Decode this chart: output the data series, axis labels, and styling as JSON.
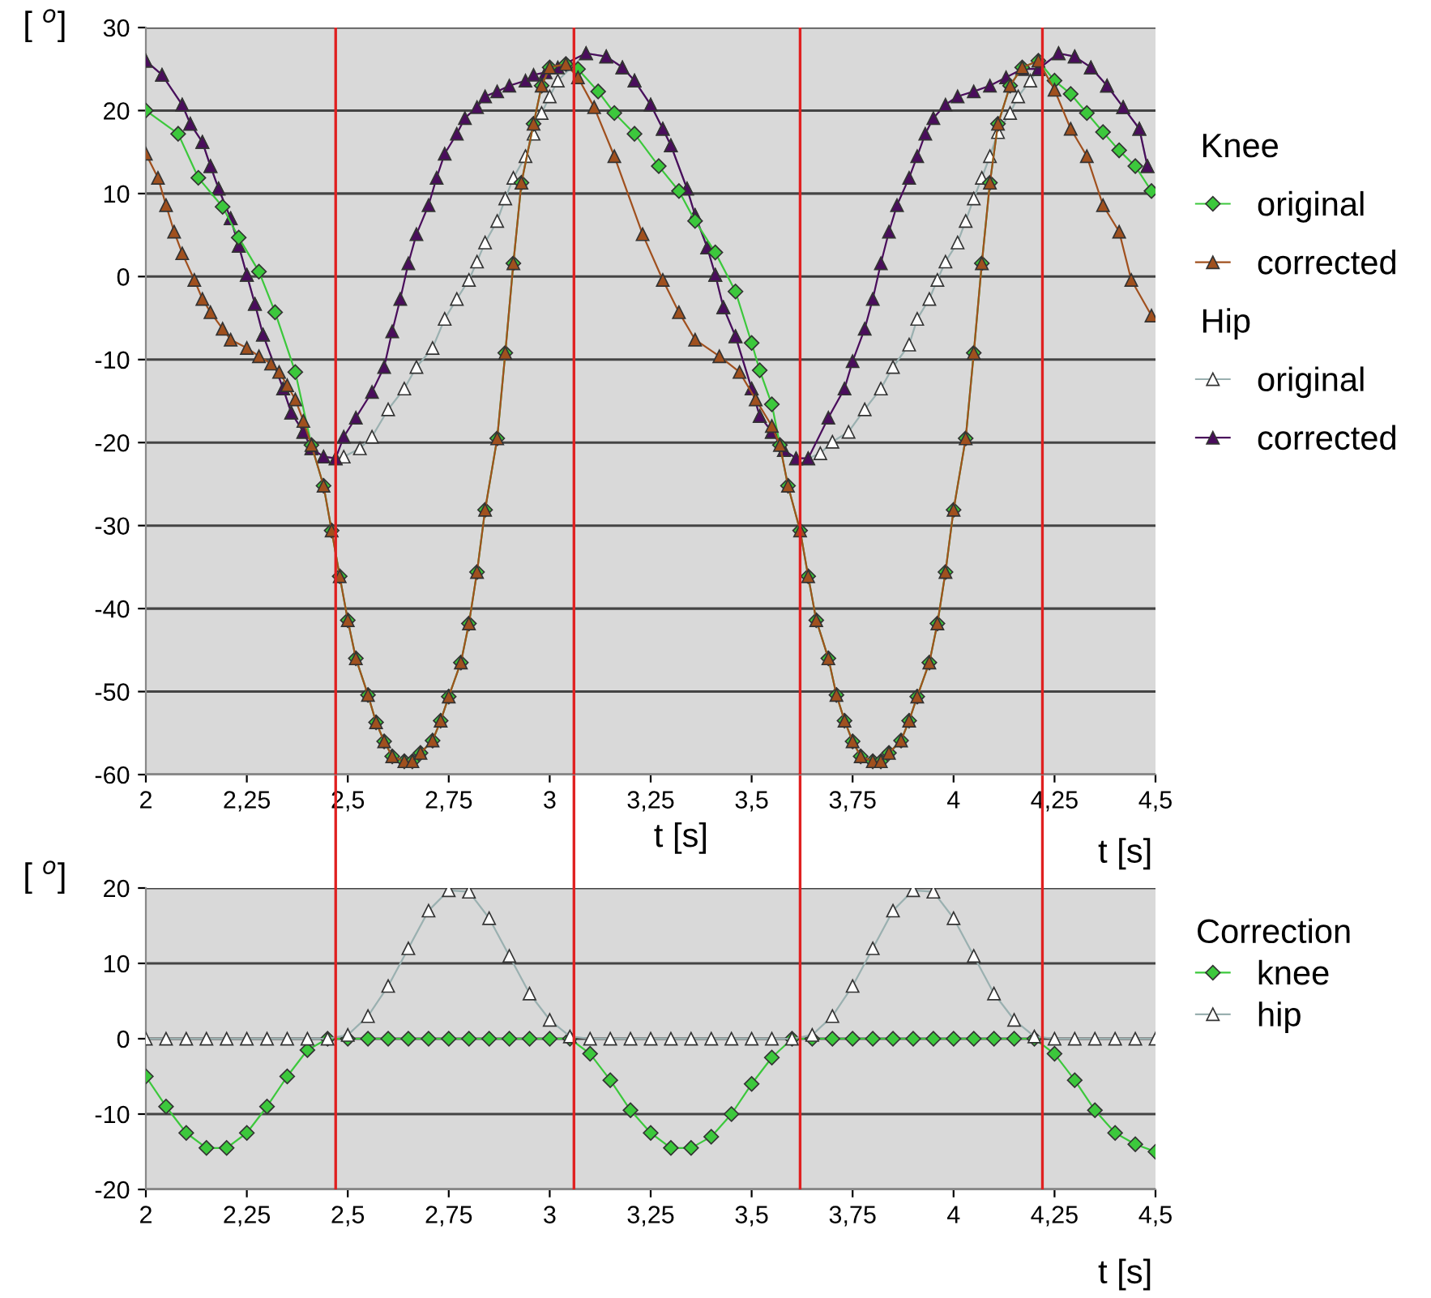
{
  "chart_data": [
    {
      "type": "line",
      "ylabel": "[ $^{o}$]",
      "xlabel": "t [s]",
      "annotations": [
        "Knee",
        "Hip",
        "t [s]"
      ],
      "xlim": [
        2,
        4.5
      ],
      "ylim": [
        -60,
        30
      ],
      "xticks": [
        2,
        {
          "value": 2.25,
          "label": "2,25"
        },
        {
          "value": 2.5,
          "label": "2,5"
        },
        {
          "value": 2.75,
          "label": "2,75"
        },
        3,
        {
          "value": 3.25,
          "label": "3,25"
        },
        {
          "value": 3.5,
          "label": "3,5"
        },
        {
          "value": 3.75,
          "label": "3,75"
        },
        4,
        {
          "value": 4.25,
          "label": "4,25"
        },
        {
          "value": 4.5,
          "label": "4,5"
        }
      ],
      "yticks": [
        -60,
        -50,
        -40,
        -30,
        -20,
        -10,
        0,
        10,
        20,
        30
      ],
      "grid": "y",
      "legend": "top right",
      "line_style": "solid",
      "ref_lines": [
        {
          "axis": "x",
          "value": 2.47,
          "color": "#e02020"
        },
        {
          "axis": "x",
          "value": 3.06,
          "color": "#e02020"
        },
        {
          "axis": "x",
          "value": 3.62,
          "color": "#e02020"
        },
        {
          "axis": "x",
          "value": 4.22,
          "color": "#e02020"
        }
      ],
      "series": [
        {
          "name": "original",
          "color": "#ffffff",
          "marker": "triangle",
          "x": [
            2.0,
            2.04,
            2.09,
            2.11,
            2.14,
            2.16,
            2.18,
            2.21,
            2.23,
            2.25,
            2.27,
            2.29,
            2.34,
            2.36,
            2.39,
            2.41,
            2.44,
            2.47,
            2.49,
            2.53,
            2.56,
            2.6,
            2.64,
            2.67,
            2.71,
            2.74,
            2.77,
            2.8,
            2.82,
            2.84,
            2.87,
            2.89,
            2.91,
            2.94,
            2.96,
            2.98,
            3.0,
            3.02,
            3.09,
            3.14,
            3.18,
            3.21,
            3.25,
            3.28,
            3.3,
            3.34,
            3.36,
            3.39,
            3.41,
            3.43,
            3.46,
            3.5,
            3.52,
            3.55,
            3.58,
            3.61,
            3.64,
            3.67,
            3.7,
            3.74,
            3.78,
            3.82,
            3.85,
            3.89,
            3.91,
            3.94,
            3.96,
            3.98,
            4.01,
            4.03,
            4.05,
            4.07,
            4.09,
            4.11,
            4.14,
            4.16,
            4.19,
            4.21,
            4.26,
            4.3,
            4.34,
            4.38,
            4.42,
            4.46,
            4.48
          ],
          "values": [
            26,
            24.3,
            20.7,
            18.4,
            16.2,
            13.3,
            10.6,
            7,
            3.7,
            0.2,
            -3.3,
            -7,
            -13.5,
            -16.4,
            -18.7,
            -20.7,
            -21.7,
            -21.9,
            -21.7,
            -20.7,
            -19.3,
            -16,
            -13.5,
            -10.9,
            -8.6,
            -5.1,
            -2.7,
            -0.4,
            1.8,
            4.1,
            6.7,
            9.4,
            11.9,
            14.5,
            17.2,
            19.7,
            21.7,
            23.6,
            26.9,
            26.5,
            25.2,
            23.6,
            20.7,
            17.8,
            15.8,
            10.6,
            7.4,
            3.5,
            0.2,
            -3.7,
            -7.2,
            -13.5,
            -16.8,
            -18.7,
            -20.9,
            -21.9,
            -21.9,
            -21.3,
            -19.9,
            -18.7,
            -16,
            -13.5,
            -10.9,
            -8.2,
            -5.1,
            -2.7,
            -0.4,
            1.8,
            4.1,
            6.7,
            9.4,
            11.9,
            14.5,
            17.4,
            19.7,
            21.7,
            23.6,
            25,
            26.9,
            26.5,
            25.2,
            23,
            20.4,
            17.8,
            13.3
          ]
        },
        {
          "name": "corrected",
          "color": "#4a0d5c",
          "marker": "triangle",
          "x": [
            2.0,
            2.04,
            2.09,
            2.11,
            2.14,
            2.16,
            2.18,
            2.21,
            2.23,
            2.25,
            2.27,
            2.29,
            2.34,
            2.36,
            2.39,
            2.41,
            2.44,
            2.47,
            2.49,
            2.52,
            2.56,
            2.59,
            2.61,
            2.63,
            2.65,
            2.67,
            2.7,
            2.72,
            2.74,
            2.77,
            2.79,
            2.82,
            2.84,
            2.87,
            2.9,
            2.94,
            2.96,
            2.99,
            3.02,
            3.09,
            3.14,
            3.18,
            3.21,
            3.25,
            3.28,
            3.3,
            3.34,
            3.36,
            3.39,
            3.41,
            3.43,
            3.46,
            3.5,
            3.52,
            3.55,
            3.58,
            3.61,
            3.64,
            3.69,
            3.73,
            3.75,
            3.78,
            3.8,
            3.82,
            3.84,
            3.86,
            3.89,
            3.91,
            3.93,
            3.95,
            3.98,
            4.01,
            4.05,
            4.09,
            4.13,
            4.17,
            4.21,
            4.26,
            4.3,
            4.34,
            4.38,
            4.42,
            4.46,
            4.48
          ],
          "values": [
            26,
            24.3,
            20.7,
            18.4,
            16.2,
            13.3,
            10.6,
            7,
            3.7,
            0.2,
            -3.3,
            -7,
            -13.5,
            -16.4,
            -18.7,
            -20.7,
            -21.7,
            -21.9,
            -19.3,
            -17,
            -13.9,
            -10.9,
            -6.6,
            -2.7,
            1.6,
            5.1,
            8.6,
            11.9,
            14.8,
            17.2,
            19.1,
            20.4,
            21.7,
            22.3,
            23,
            23.6,
            24.3,
            24.6,
            25.2,
            26.9,
            26.5,
            25.2,
            23.6,
            20.7,
            17.8,
            15.8,
            10.6,
            7.4,
            3.5,
            0.2,
            -3.7,
            -7.2,
            -13.5,
            -16.8,
            -18.7,
            -20.9,
            -21.9,
            -21.9,
            -17,
            -13.5,
            -10.2,
            -6.3,
            -2.7,
            1.6,
            5.4,
            8.6,
            11.9,
            14.5,
            17.2,
            19.1,
            20.7,
            21.7,
            22.3,
            23,
            24,
            25,
            25,
            26.9,
            26.5,
            25.2,
            23,
            20.4,
            17.8,
            13.3
          ]
        },
        {
          "name": "original",
          "color": "#3cc83c",
          "marker": "diamond",
          "x": [
            2.0,
            2.08,
            2.13,
            2.19,
            2.23,
            2.28,
            2.32,
            2.37,
            2.41,
            2.44,
            2.46,
            2.48,
            2.5,
            2.52,
            2.55,
            2.57,
            2.59,
            2.61,
            2.64,
            2.66,
            2.68,
            2.71,
            2.73,
            2.75,
            2.78,
            2.8,
            2.82,
            2.84,
            2.87,
            2.89,
            2.91,
            2.93,
            2.96,
            2.98,
            3.0,
            3.04,
            3.07,
            3.12,
            3.16,
            3.21,
            3.27,
            3.32,
            3.36,
            3.41,
            3.46,
            3.5,
            3.52,
            3.55,
            3.57,
            3.59,
            3.62,
            3.64,
            3.66,
            3.69,
            3.71,
            3.73,
            3.75,
            3.77,
            3.8,
            3.82,
            3.84,
            3.87,
            3.89,
            3.91,
            3.94,
            3.96,
            3.98,
            4.0,
            4.03,
            4.05,
            4.07,
            4.09,
            4.11,
            4.14,
            4.17,
            4.21,
            4.25,
            4.29,
            4.33,
            4.37,
            4.41,
            4.45,
            4.49
          ],
          "values": [
            20,
            17.2,
            11.9,
            8.4,
            4.7,
            0.6,
            -4.3,
            -11.5,
            -20.3,
            -25.2,
            -30.6,
            -36.1,
            -41.4,
            -46,
            -50.4,
            -53.7,
            -56,
            -57.8,
            -58.4,
            -58.4,
            -57.4,
            -55.9,
            -53.5,
            -50.6,
            -46.5,
            -41.8,
            -35.6,
            -28.1,
            -19.5,
            -9.2,
            1.6,
            11.3,
            18.4,
            23,
            25.2,
            25.6,
            25,
            22.3,
            19.7,
            17.2,
            13.3,
            10.3,
            6.7,
            2.9,
            -1.8,
            -8,
            -11.3,
            -15.4,
            -20.3,
            -25.2,
            -30.6,
            -36.1,
            -41.4,
            -46,
            -50.4,
            -53.5,
            -56,
            -57.8,
            -58.4,
            -58.4,
            -57.4,
            -55.9,
            -53.5,
            -50.6,
            -46.5,
            -41.8,
            -35.6,
            -28.1,
            -19.5,
            -9.2,
            1.6,
            11.3,
            18.4,
            23,
            25.2,
            26,
            23.6,
            22,
            19.7,
            17.4,
            15.2,
            13.3,
            10.3
          ]
        },
        {
          "name": "corrected",
          "color": "#a0501e",
          "marker": "triangle",
          "x": [
            2.0,
            2.03,
            2.05,
            2.07,
            2.09,
            2.12,
            2.14,
            2.16,
            2.19,
            2.21,
            2.25,
            2.28,
            2.31,
            2.33,
            2.35,
            2.37,
            2.39,
            2.41,
            2.44,
            2.46,
            2.48,
            2.5,
            2.52,
            2.55,
            2.57,
            2.59,
            2.61,
            2.64,
            2.66,
            2.68,
            2.71,
            2.73,
            2.75,
            2.78,
            2.8,
            2.82,
            2.84,
            2.87,
            2.89,
            2.91,
            2.93,
            2.96,
            2.98,
            3.0,
            3.04,
            3.07,
            3.11,
            3.16,
            3.23,
            3.28,
            3.32,
            3.36,
            3.42,
            3.47,
            3.51,
            3.55,
            3.57,
            3.59,
            3.62,
            3.64,
            3.66,
            3.69,
            3.71,
            3.73,
            3.75,
            3.77,
            3.8,
            3.82,
            3.84,
            3.87,
            3.89,
            3.91,
            3.94,
            3.96,
            3.98,
            4.0,
            4.03,
            4.05,
            4.07,
            4.09,
            4.11,
            4.14,
            4.17,
            4.21,
            4.25,
            4.29,
            4.33,
            4.37,
            4.41,
            4.44,
            4.49
          ],
          "values": [
            14.8,
            11.9,
            8.6,
            5.4,
            2.8,
            -0.4,
            -2.7,
            -4.3,
            -6.3,
            -7.6,
            -8.6,
            -9.6,
            -10.5,
            -11.5,
            -13.1,
            -14.8,
            -17.4,
            -20.3,
            -25.2,
            -30.6,
            -36.1,
            -41.4,
            -46,
            -50.4,
            -53.7,
            -56,
            -57.8,
            -58.4,
            -58.4,
            -57.4,
            -55.9,
            -53.5,
            -50.6,
            -46.5,
            -41.8,
            -35.6,
            -28.1,
            -19.5,
            -9.2,
            1.6,
            11.3,
            18.4,
            23,
            25.2,
            25.6,
            24,
            20.4,
            14.5,
            5.1,
            -0.4,
            -4.3,
            -7.6,
            -9.6,
            -11.5,
            -14.8,
            -18,
            -20.3,
            -25.2,
            -30.6,
            -36.1,
            -41.4,
            -46,
            -50.4,
            -53.5,
            -56,
            -57.8,
            -58.4,
            -58.4,
            -57.4,
            -55.9,
            -53.5,
            -50.6,
            -46.5,
            -41.8,
            -35.6,
            -28.1,
            -19.5,
            -9.2,
            1.6,
            11.3,
            18.4,
            23,
            25.2,
            26,
            22.5,
            17.8,
            14.5,
            8.6,
            5.4,
            -0.4,
            -4.7
          ]
        }
      ]
    },
    {
      "type": "line",
      "ylabel": "[ $^{o}$]",
      "xlabel": "t [s]",
      "legend_title": "Correction",
      "xlim": [
        2,
        4.5
      ],
      "ylim": [
        -20,
        20
      ],
      "xticks": [
        2,
        {
          "value": 2.25,
          "label": "2,25"
        },
        {
          "value": 2.5,
          "label": "2,5"
        },
        {
          "value": 2.75,
          "label": "2,75"
        },
        3,
        {
          "value": 3.25,
          "label": "3,25"
        },
        {
          "value": 3.5,
          "label": "3,5"
        },
        {
          "value": 3.75,
          "label": "3,75"
        },
        4,
        {
          "value": 4.25,
          "label": "4,25"
        },
        {
          "value": 4.5,
          "label": "4,5"
        }
      ],
      "yticks": [
        -20,
        -10,
        0,
        10,
        20
      ],
      "grid": "y",
      "legend": "top right",
      "ref_lines": [
        {
          "axis": "x",
          "value": 2.47,
          "color": "#e02020"
        },
        {
          "axis": "x",
          "value": 3.06,
          "color": "#e02020"
        },
        {
          "axis": "x",
          "value": 3.62,
          "color": "#e02020"
        },
        {
          "axis": "x",
          "value": 4.22,
          "color": "#e02020"
        }
      ],
      "series": [
        {
          "name": "knee",
          "color": "#3cc83c",
          "marker": "diamond",
          "x": [
            2.0,
            2.05,
            2.1,
            2.15,
            2.2,
            2.25,
            2.3,
            2.35,
            2.4,
            2.45,
            2.5,
            2.55,
            2.6,
            2.65,
            2.7,
            2.75,
            2.8,
            2.85,
            2.9,
            2.95,
            3.0,
            3.05,
            3.1,
            3.15,
            3.2,
            3.25,
            3.3,
            3.35,
            3.4,
            3.45,
            3.5,
            3.55,
            3.6,
            3.65,
            3.7,
            3.75,
            3.8,
            3.85,
            3.9,
            3.95,
            4.0,
            4.05,
            4.1,
            4.15,
            4.2,
            4.25,
            4.3,
            4.35,
            4.4,
            4.45,
            4.5
          ],
          "values": [
            -5,
            -9,
            -12.5,
            -14.5,
            -14.5,
            -12.5,
            -9,
            -5,
            -1.5,
            0,
            0,
            0,
            0,
            0,
            0,
            0,
            0,
            0,
            0,
            0,
            0,
            0,
            -2,
            -5.5,
            -9.5,
            -12.5,
            -14.5,
            -14.5,
            -13,
            -10,
            -6,
            -2.5,
            0,
            0,
            0,
            0,
            0,
            0,
            0,
            0,
            0,
            0,
            0,
            0,
            0,
            -2,
            -5.5,
            -9.5,
            -12.5,
            -14,
            -15
          ]
        },
        {
          "name": "hip",
          "color": "#ffffff",
          "marker": "triangle",
          "x": [
            2.0,
            2.05,
            2.1,
            2.15,
            2.2,
            2.25,
            2.3,
            2.35,
            2.4,
            2.45,
            2.5,
            2.55,
            2.6,
            2.65,
            2.7,
            2.75,
            2.8,
            2.85,
            2.9,
            2.95,
            3.0,
            3.05,
            3.1,
            3.15,
            3.2,
            3.25,
            3.3,
            3.35,
            3.4,
            3.45,
            3.5,
            3.55,
            3.6,
            3.65,
            3.7,
            3.75,
            3.8,
            3.85,
            3.9,
            3.95,
            4.0,
            4.05,
            4.1,
            4.15,
            4.2,
            4.25,
            4.3,
            4.35,
            4.4,
            4.45,
            4.5
          ],
          "values": [
            0,
            0,
            0,
            0,
            0,
            0,
            0,
            0,
            0,
            0,
            0.5,
            3,
            7,
            12,
            17,
            19.7,
            19.5,
            16,
            11,
            6,
            2.5,
            0.3,
            0,
            0,
            0,
            0,
            0,
            0,
            0,
            0,
            0,
            0,
            0,
            0.5,
            3,
            7,
            12,
            17,
            19.7,
            19.5,
            16,
            11,
            6,
            2.5,
            0.3,
            0,
            0,
            0,
            0,
            0,
            0
          ]
        }
      ]
    }
  ]
}
